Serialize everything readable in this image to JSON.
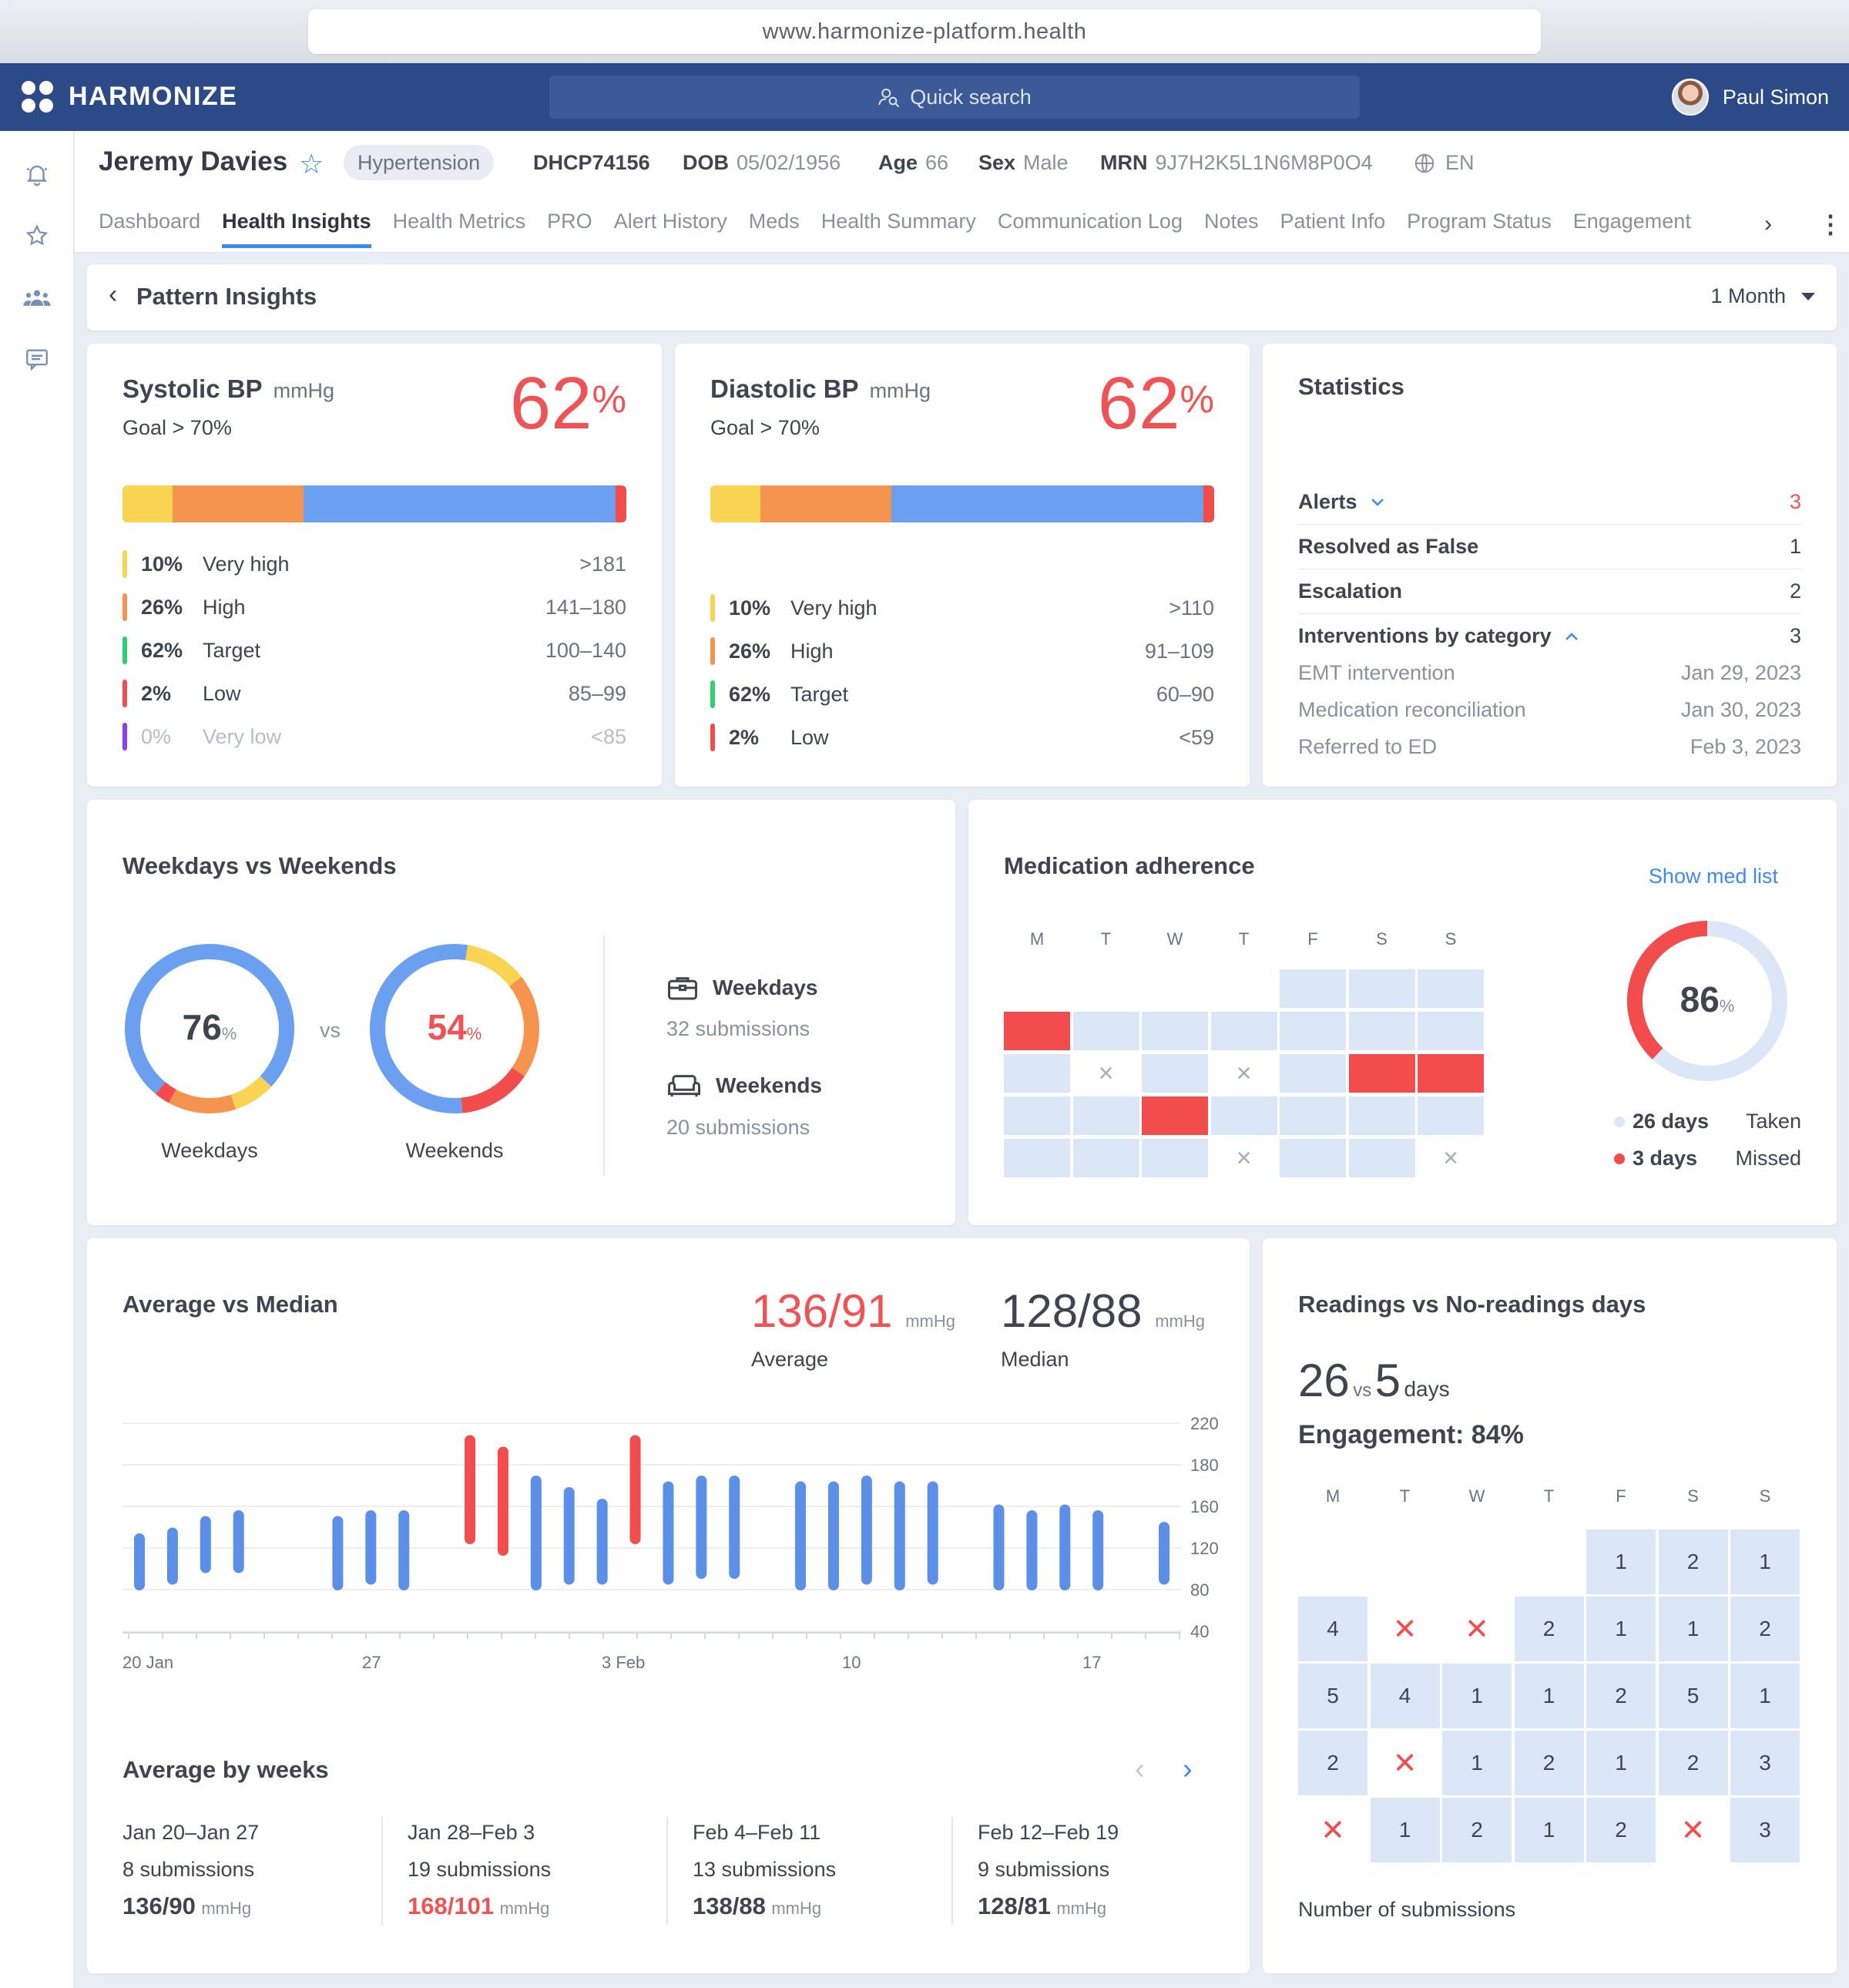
{
  "browser": {
    "url": "www.harmonize-platform.health"
  },
  "app": {
    "name": "HARMONIZE",
    "search_placeholder": "Quick search",
    "user_name": "Paul Simon"
  },
  "patient": {
    "name": "Jeremy Davies",
    "condition": "Hypertension",
    "id": "DHCP74156",
    "dob_label": "DOB",
    "dob": "05/02/1956",
    "age_label": "Age",
    "age": "66",
    "sex_label": "Sex",
    "sex": "Male",
    "mrn_label": "MRN",
    "mrn": "9J7H2K5L1N6M8P0O4",
    "language": "EN"
  },
  "tabs": [
    "Dashboard",
    "Health Insights",
    "Health Metrics",
    "PRO",
    "Alert History",
    "Meds",
    "Health Summary",
    "Communication Log",
    "Notes",
    "Patient Info",
    "Program Status",
    "Engagement"
  ],
  "active_tab": "Health Insights",
  "page": {
    "title": "Pattern Insights",
    "period": "1 Month"
  },
  "systolic": {
    "title": "Systolic BP",
    "unit": "mmHg",
    "goal": "Goal > 70%",
    "percent": "62",
    "percent_sign": "%",
    "bar_fractions": [
      0.1,
      0.26,
      0.62,
      0.02
    ],
    "rows": [
      {
        "pct": "10%",
        "label": "Very high",
        "range": ">181",
        "color": "#f9d452"
      },
      {
        "pct": "26%",
        "label": "High",
        "range": "141–180",
        "color": "#f5944f"
      },
      {
        "pct": "62%",
        "label": "Target",
        "range": "100–140",
        "color": "#2fd16e"
      },
      {
        "pct": "2%",
        "label": "Low",
        "range": "85–99",
        "color": "#f24c4c"
      },
      {
        "pct": "0%",
        "label": "Very low",
        "range": "<85",
        "color": "#8a3ff0"
      }
    ]
  },
  "diastolic": {
    "title": "Diastolic BP",
    "unit": "mmHg",
    "goal": "Goal > 70%",
    "percent": "62",
    "percent_sign": "%",
    "bar_fractions": [
      0.1,
      0.26,
      0.62,
      0.02
    ],
    "rows": [
      {
        "pct": "10%",
        "label": "Very high",
        "range": ">110",
        "color": "#f9d452"
      },
      {
        "pct": "26%",
        "label": "High",
        "range": "91–109",
        "color": "#f5944f"
      },
      {
        "pct": "62%",
        "label": "Target",
        "range": "60–90",
        "color": "#2fd16e"
      },
      {
        "pct": "2%",
        "label": "Low",
        "range": "<59",
        "color": "#f24c4c"
      }
    ]
  },
  "statistics": {
    "title": "Statistics",
    "alerts_label": "Alerts",
    "alerts": "3",
    "resolved_label": "Resolved as False",
    "resolved": "1",
    "escalation_label": "Escalation",
    "escalation": "2",
    "interventions_label": "Interventions by category",
    "interventions": "3",
    "items": [
      {
        "label": "EMT intervention",
        "date": "Jan 29, 2023"
      },
      {
        "label": "Medication reconciliation",
        "date": "Jan 30, 2023"
      },
      {
        "label": "Referred to ED",
        "date": "Feb 3, 2023"
      }
    ]
  },
  "weekdays_weekends": {
    "title": "Weekdays vs Weekends",
    "vs": "vs",
    "weekdays_pct": "76",
    "weekdays_label": "Weekdays",
    "weekends_pct": "54",
    "weekends_label": "Weekends",
    "pct_sign": "%",
    "weekdays_segments": [
      0.76,
      0.16,
      0.03,
      0.05
    ],
    "weekends_segments": [
      0.54,
      0.12,
      0.2,
      0.14
    ],
    "weekdays_title": "Weekdays",
    "weekdays_submissions": "32 submissions",
    "weekends_title": "Weekends",
    "weekends_submissions": "20 submissions"
  },
  "medication": {
    "title": "Medication adherence",
    "link": "Show med list",
    "days": [
      "M",
      "T",
      "W",
      "T",
      "F",
      "S",
      "S"
    ],
    "percent": "86",
    "pct_sign": "%",
    "fraction": 0.86,
    "taken": "26 days",
    "taken_label": "Taken",
    "missed": "3 days",
    "missed_label": "Missed"
  },
  "avg_median": {
    "title": "Average vs Median",
    "average": "136/91",
    "average_label": "Average",
    "median": "128/88",
    "median_label": "Median",
    "unit": "mmHg"
  },
  "chart_data": {
    "type": "bar",
    "ylim": [
      40,
      220
    ],
    "yticks": [
      "220",
      "180",
      "160",
      "120",
      "80",
      "40"
    ],
    "xticks": [
      "20 Jan",
      "27",
      "3 Feb",
      "10",
      "17"
    ],
    "series": [
      {
        "values": [
          [
            80,
            120
          ],
          [
            85,
            125
          ],
          [
            95,
            135
          ],
          [
            95,
            140
          ],
          [
            null,
            null
          ],
          [
            null,
            null
          ],
          [
            80,
            135
          ],
          [
            85,
            140
          ],
          [
            80,
            140
          ],
          [
            null,
            null
          ],
          [
            120,
            205
          ],
          [
            110,
            195
          ],
          [
            80,
            170
          ],
          [
            85,
            160
          ],
          [
            85,
            150
          ],
          [
            120,
            205
          ],
          [
            85,
            165
          ],
          [
            90,
            170
          ],
          [
            90,
            170
          ],
          [
            null,
            null
          ],
          [
            80,
            165
          ],
          [
            80,
            165
          ],
          [
            85,
            170
          ],
          [
            80,
            165
          ],
          [
            85,
            165
          ],
          [
            null,
            null
          ],
          [
            80,
            145
          ],
          [
            80,
            140
          ],
          [
            80,
            145
          ],
          [
            80,
            140
          ],
          [
            null,
            null
          ],
          [
            85,
            130
          ]
        ],
        "highlight": [
          10,
          11,
          15
        ]
      }
    ]
  },
  "avg_by_weeks": {
    "title": "Average by weeks",
    "weeks": [
      {
        "range": "Jan 20–Jan 27",
        "subs": "8 submissions",
        "value": "136/90",
        "unit": "mmHg"
      },
      {
        "range": "Jan 28–Feb 3",
        "subs": "19 submissions",
        "value": "168/101",
        "unit": "mmHg"
      },
      {
        "range": "Feb 4–Feb 11",
        "subs": "13 submissions",
        "value": "138/88",
        "unit": "mmHg"
      },
      {
        "range": "Feb 12–Feb 19",
        "subs": "9 submissions",
        "value": "128/81",
        "unit": "mmHg"
      }
    ]
  },
  "readings": {
    "title": "Readings vs No-readings days",
    "readings": "26",
    "vs": "vs",
    "no_readings": "5",
    "days": "days",
    "engagement": "Engagement: 84%",
    "days_header": [
      "M",
      "T",
      "W",
      "T",
      "F",
      "S",
      "S"
    ],
    "footer": "Number of submissions",
    "rows": [
      [
        "",
        "",
        "",
        "",
        "1",
        "2",
        "1"
      ],
      [
        "4",
        "x",
        "x",
        "2",
        "1",
        "1",
        "2"
      ],
      [
        "5",
        "4",
        "1",
        "1",
        "2",
        "5",
        "1"
      ],
      [
        "2",
        "x",
        "1",
        "2",
        "1",
        "2",
        "3"
      ],
      [
        "x",
        "1",
        "2",
        "1",
        "2",
        "x",
        "3"
      ]
    ]
  },
  "colors": {
    "yellow": "#f9d452",
    "orange": "#f5944f",
    "blue": "#6b9ff0",
    "red": "#f24c4c",
    "green": "#2fd16e",
    "purple": "#8a3ff0",
    "accent": "#3d8bf0",
    "nav": "#2d4a88"
  }
}
